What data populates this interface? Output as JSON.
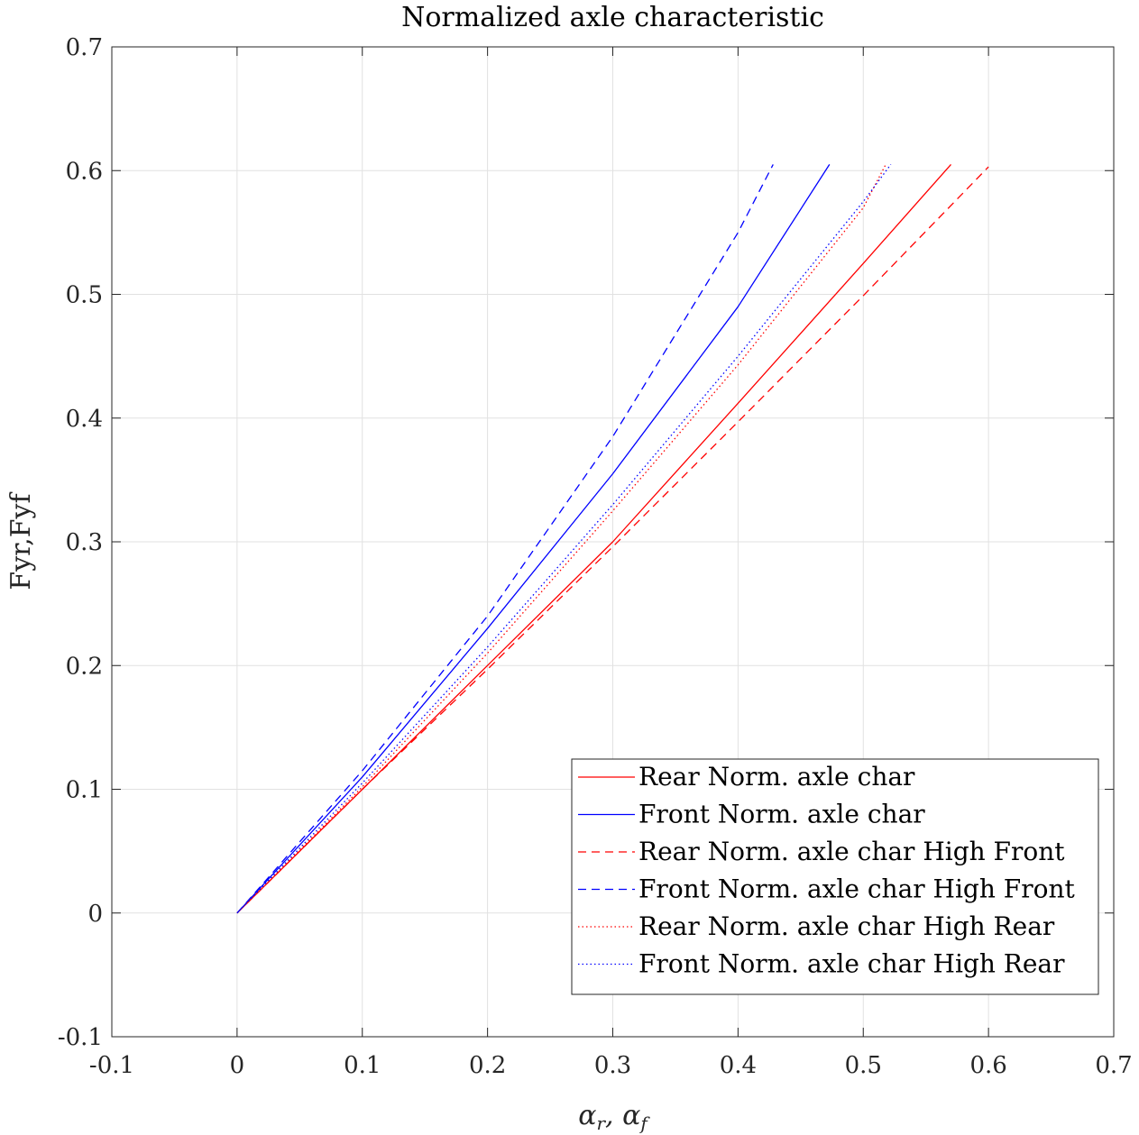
{
  "chart_data": {
    "type": "line",
    "title": "Normalized axle characteristic",
    "xlabel": "α_r, α_f",
    "ylabel": "Fyr,Fyf",
    "xlim": [
      -0.1,
      0.7
    ],
    "ylim": [
      -0.1,
      0.7
    ],
    "xticks": [
      "-0.1",
      "0",
      "0.1",
      "0.2",
      "0.3",
      "0.4",
      "0.5",
      "0.6",
      "0.7"
    ],
    "yticks": [
      "-0.1",
      "0",
      "0.1",
      "0.2",
      "0.3",
      "0.4",
      "0.5",
      "0.6",
      "0.7"
    ],
    "grid": true,
    "legend_location": "bottom-right",
    "series": [
      {
        "name": "Rear Norm. axle char",
        "color": "#ff0000",
        "dash": "solid",
        "x": [
          0,
          0.1,
          0.2,
          0.3,
          0.4,
          0.5,
          0.57
        ],
        "y": [
          0,
          0.1,
          0.2,
          0.3,
          0.412,
          0.525,
          0.605
        ]
      },
      {
        "name": "Front Norm. axle char",
        "color": "#0000ff",
        "dash": "solid",
        "x": [
          0,
          0.1,
          0.2,
          0.3,
          0.4,
          0.473
        ],
        "y": [
          0,
          0.11,
          0.23,
          0.355,
          0.49,
          0.605
        ]
      },
      {
        "name": "Rear Norm. axle char High Front",
        "color": "#ff0000",
        "dash": "dashed",
        "x": [
          0,
          0.1,
          0.2,
          0.3,
          0.4,
          0.5,
          0.6
        ],
        "y": [
          0,
          0.1,
          0.197,
          0.296,
          0.397,
          0.499,
          0.603
        ]
      },
      {
        "name": "Front Norm. axle char High Front",
        "color": "#0000ff",
        "dash": "dashed",
        "x": [
          0,
          0.1,
          0.2,
          0.3,
          0.4,
          0.428
        ],
        "y": [
          0,
          0.115,
          0.24,
          0.385,
          0.55,
          0.605
        ]
      },
      {
        "name": "Rear Norm. axle char High Rear",
        "color": "#ff0000",
        "dash": "dotted",
        "x": [
          0,
          0.1,
          0.2,
          0.3,
          0.4,
          0.5,
          0.518
        ],
        "y": [
          0,
          0.102,
          0.21,
          0.325,
          0.443,
          0.57,
          0.605
        ]
      },
      {
        "name": "Front Norm. axle char High Rear",
        "color": "#0000ff",
        "dash": "dotted",
        "x": [
          0,
          0.1,
          0.2,
          0.3,
          0.4,
          0.5,
          0.522
        ],
        "y": [
          0,
          0.105,
          0.215,
          0.33,
          0.45,
          0.575,
          0.605
        ]
      }
    ]
  }
}
